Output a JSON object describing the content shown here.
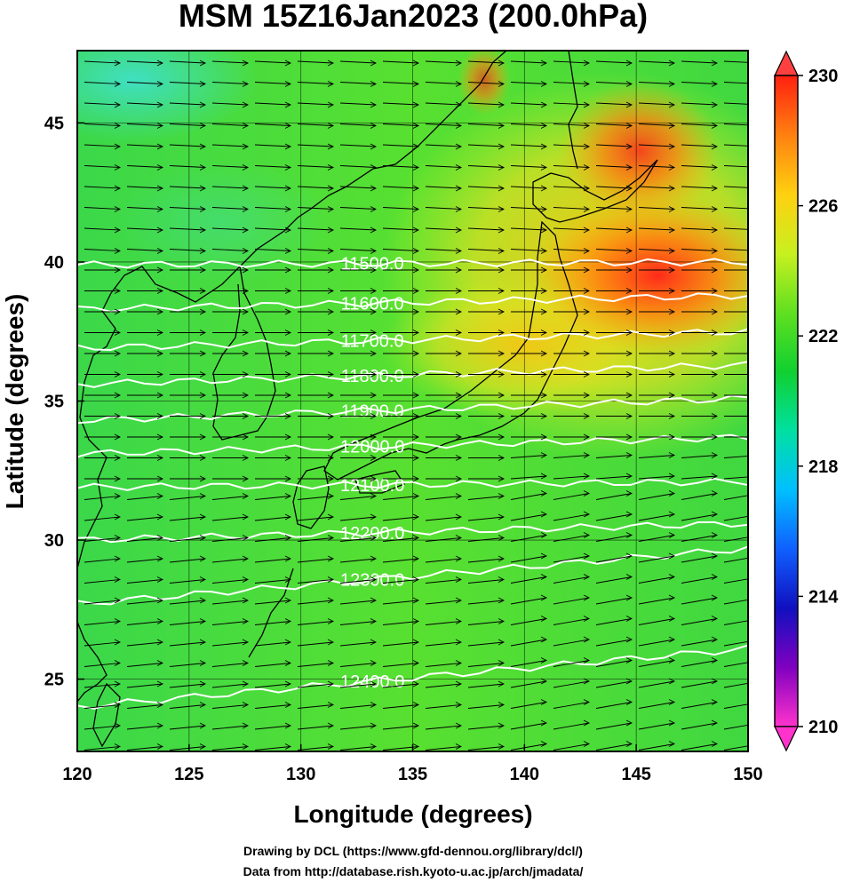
{
  "title": "MSM 15Z16Jan2023 (200.0hPa)",
  "xlabel": "Longitude (degrees)",
  "ylabel": "Latitude  (degrees)",
  "credits": [
    "Drawing by DCL (https://www.gfd-dennou.org/library/dcl/)",
    "Data from http://database.rish.kyoto-u.ac.jp/arch/jmadata/"
  ],
  "map": {
    "lon_range": [
      120,
      150
    ],
    "lat_range": [
      22.4,
      47.6
    ],
    "lon_ticks": [
      "120",
      "125",
      "130",
      "135",
      "140",
      "145",
      "150"
    ],
    "lat_ticks": [
      "25",
      "30",
      "35",
      "40",
      "45"
    ],
    "contours": [
      {
        "label": "11500.0",
        "lat_west": 39.9,
        "lat_east": 40.0
      },
      {
        "label": "11600.0",
        "lat_west": 38.3,
        "lat_east": 38.8
      },
      {
        "label": "11700.0",
        "lat_west": 36.9,
        "lat_east": 37.5
      },
      {
        "label": "11800.0",
        "lat_west": 35.6,
        "lat_east": 36.3
      },
      {
        "label": "11900.0",
        "lat_west": 34.3,
        "lat_east": 35.1
      },
      {
        "label": "12000.0",
        "lat_west": 33.1,
        "lat_east": 33.7
      },
      {
        "label": "12100.0",
        "lat_west": 31.9,
        "lat_east": 32.1
      },
      {
        "label": "12200.0",
        "lat_west": 30.0,
        "lat_east": 30.6
      },
      {
        "label": "12300.0",
        "lat_west": 27.7,
        "lat_east": 29.7
      },
      {
        "label": "12400.0",
        "lat_west": 24.0,
        "lat_east": 26.1
      }
    ]
  },
  "colorbar": {
    "ticks": [
      "230",
      "226",
      "222",
      "218",
      "214",
      "210"
    ],
    "min": 210,
    "max": 230,
    "colors": [
      "#ff33cc",
      "#8000c0",
      "#1010c0",
      "#1060ff",
      "#00c0ff",
      "#00e0a0",
      "#10d030",
      "#60e020",
      "#c8f020",
      "#ffd010",
      "#ff8010",
      "#ff2010"
    ]
  },
  "colors": {
    "contour": "#ffffff",
    "background_field": "#40d840",
    "warm_max": "#ff2a1a"
  }
}
